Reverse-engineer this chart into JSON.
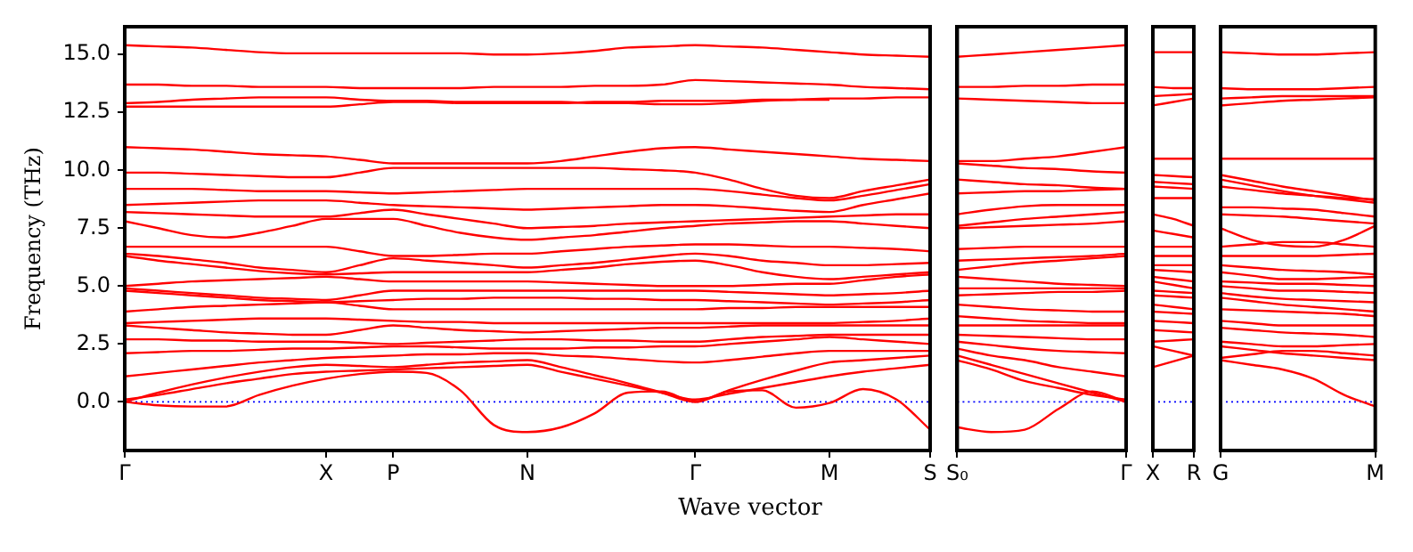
{
  "chart_data": [
    {
      "type": "line",
      "ylabel": "Frequency (THz)",
      "xlabel": "Wave vector",
      "marker": "none",
      "legend": false,
      "categories": [
        "Γ",
        null,
        null,
        null,
        null,
        null,
        "X",
        null,
        "P",
        null,
        null,
        null,
        "N",
        null,
        null,
        null,
        null,
        "Γ",
        null,
        null,
        null,
        "M",
        null,
        null,
        "S"
      ],
      "ylim": [
        -2.1,
        16.2
      ],
      "yticks": [
        {
          "value": 0,
          "label": "0.0"
        },
        2.5,
        {
          "value": 5,
          "label": "5.0"
        },
        7.5,
        {
          "value": 10,
          "label": "10.0"
        },
        12.5,
        {
          "value": 15,
          "label": "15.0"
        }
      ],
      "ref_lines": [
        {
          "axis": "y",
          "value": 0,
          "color": "#0000ff",
          "line_style": "dotted"
        }
      ],
      "series": [
        {
          "color": "#ff0000",
          "values": [
            15.4,
            15.35,
            15.3,
            15.2,
            15.1,
            15.05,
            15.05,
            15.05,
            15.05,
            15.05,
            15.05,
            15.0,
            15.0,
            15.05,
            15.15,
            15.3,
            15.35,
            15.4,
            15.35,
            15.3,
            15.2,
            15.1,
            15.0,
            14.95,
            14.9
          ]
        },
        {
          "color": "#ff0000",
          "values": [
            13.7,
            13.7,
            13.65,
            13.65,
            13.6,
            13.6,
            13.6,
            13.55,
            13.55,
            13.55,
            13.55,
            13.6,
            13.6,
            13.6,
            13.65,
            13.65,
            13.7,
            13.9,
            13.85,
            13.8,
            13.75,
            13.7,
            13.6,
            13.55,
            13.5
          ]
        },
        {
          "color": "#ff0000",
          "values": [
            12.9,
            12.95,
            13.05,
            13.1,
            13.15,
            13.15,
            13.15,
            13.05,
            13.0,
            13.0,
            12.95,
            12.95,
            12.95,
            12.95,
            12.9,
            12.9,
            12.85,
            12.85,
            12.9,
            13.0,
            13.05,
            13.1,
            13.1,
            13.15,
            13.15
          ]
        },
        {
          "color": "#ff0000",
          "values": [
            12.75,
            12.75,
            12.75,
            12.75,
            12.75,
            12.75,
            12.75,
            12.85,
            12.95,
            12.95,
            12.9,
            12.9,
            12.9,
            12.9,
            12.95,
            12.95,
            13.0,
            13.0,
            13.0,
            13.05,
            13.05,
            13.05,
            null,
            null,
            null
          ]
        },
        {
          "color": "#ff0000",
          "values": [
            11.0,
            10.95,
            10.9,
            10.8,
            10.7,
            10.65,
            10.6,
            10.45,
            10.3,
            10.3,
            10.3,
            10.3,
            10.3,
            10.4,
            10.6,
            10.8,
            10.95,
            11.0,
            10.9,
            10.8,
            10.7,
            10.6,
            10.5,
            10.45,
            10.4
          ]
        },
        {
          "color": "#ff0000",
          "values": [
            9.9,
            9.9,
            9.85,
            9.8,
            9.75,
            9.7,
            9.7,
            9.9,
            10.1,
            10.1,
            10.1,
            10.1,
            10.1,
            10.1,
            10.1,
            10.05,
            10.0,
            9.9,
            9.6,
            9.2,
            8.9,
            8.8,
            9.1,
            9.35,
            9.6
          ]
        },
        {
          "color": "#ff0000",
          "values": [
            9.2,
            9.2,
            9.2,
            9.15,
            9.1,
            9.1,
            9.1,
            9.05,
            9.0,
            9.05,
            9.1,
            9.15,
            9.2,
            9.2,
            9.2,
            9.2,
            9.2,
            9.2,
            9.1,
            8.95,
            8.8,
            8.7,
            8.9,
            9.15,
            9.4
          ]
        },
        {
          "color": "#ff0000",
          "values": [
            8.5,
            8.55,
            8.6,
            8.65,
            8.7,
            8.7,
            8.7,
            8.6,
            8.5,
            8.45,
            8.4,
            8.35,
            8.3,
            8.35,
            8.4,
            8.45,
            8.5,
            8.5,
            8.45,
            8.35,
            8.25,
            8.2,
            8.5,
            8.75,
            9.0
          ]
        },
        {
          "color": "#ff0000",
          "values": [
            8.2,
            8.15,
            8.1,
            8.05,
            8.0,
            8.0,
            8.0,
            8.15,
            8.3,
            8.1,
            7.9,
            7.7,
            7.5,
            7.55,
            7.6,
            7.7,
            7.75,
            7.8,
            7.85,
            7.9,
            7.95,
            8.0,
            8.05,
            8.1,
            8.1
          ]
        },
        {
          "color": "#ff0000",
          "values": [
            7.8,
            7.5,
            7.2,
            7.1,
            7.3,
            7.6,
            7.9,
            7.9,
            7.9,
            7.6,
            7.3,
            7.1,
            7.0,
            7.1,
            7.2,
            7.35,
            7.5,
            7.6,
            7.7,
            7.75,
            7.8,
            7.8,
            7.7,
            7.6,
            7.5
          ]
        },
        {
          "color": "#ff0000",
          "values": [
            6.7,
            6.7,
            6.7,
            6.7,
            6.7,
            6.7,
            6.7,
            6.5,
            6.3,
            6.3,
            6.35,
            6.4,
            6.4,
            6.5,
            6.6,
            6.7,
            6.75,
            6.8,
            6.8,
            6.75,
            6.7,
            6.7,
            6.65,
            6.6,
            6.5
          ]
        },
        {
          "color": "#ff0000",
          "values": [
            6.4,
            6.3,
            6.15,
            6.0,
            5.8,
            5.7,
            5.6,
            5.9,
            6.2,
            6.1,
            6.0,
            5.9,
            5.8,
            5.9,
            6.0,
            6.15,
            6.3,
            6.4,
            6.3,
            6.1,
            6.0,
            5.9,
            5.9,
            5.95,
            6.0
          ]
        },
        {
          "color": "#ff0000",
          "values": [
            6.3,
            6.1,
            5.95,
            5.8,
            5.65,
            5.55,
            5.5,
            5.55,
            5.6,
            5.6,
            5.6,
            5.6,
            5.6,
            5.7,
            5.8,
            5.95,
            6.05,
            6.1,
            5.9,
            5.6,
            5.4,
            5.3,
            5.4,
            5.5,
            5.6
          ]
        },
        {
          "color": "#ff0000",
          "values": [
            5.0,
            5.1,
            5.2,
            5.25,
            5.3,
            5.35,
            5.4,
            5.3,
            5.2,
            5.2,
            5.2,
            5.2,
            5.2,
            5.15,
            5.1,
            5.05,
            5.0,
            5.0,
            5.0,
            5.05,
            5.1,
            5.1,
            5.25,
            5.4,
            5.5
          ]
        },
        {
          "color": "#ff0000",
          "values": [
            4.9,
            4.8,
            4.7,
            4.6,
            4.5,
            4.45,
            4.4,
            4.6,
            4.8,
            4.8,
            4.8,
            4.8,
            4.8,
            4.8,
            4.8,
            4.8,
            4.8,
            4.8,
            4.75,
            4.7,
            4.65,
            4.6,
            4.65,
            4.7,
            4.8
          ]
        },
        {
          "color": "#ff0000",
          "values": [
            4.8,
            4.7,
            4.6,
            4.5,
            4.4,
            4.35,
            4.3,
            4.35,
            4.4,
            4.45,
            4.45,
            4.5,
            4.5,
            4.5,
            4.45,
            4.45,
            4.4,
            4.4,
            4.35,
            4.3,
            4.25,
            4.2,
            4.25,
            4.3,
            4.4
          ]
        },
        {
          "color": "#ff0000",
          "values": [
            3.9,
            4.0,
            4.1,
            4.15,
            4.2,
            4.25,
            4.3,
            4.15,
            4.0,
            4.0,
            4.0,
            4.0,
            4.0,
            4.0,
            4.0,
            4.0,
            4.0,
            4.0,
            4.05,
            4.05,
            4.1,
            4.1,
            4.1,
            4.1,
            4.1
          ]
        },
        {
          "color": "#ff0000",
          "values": [
            3.4,
            3.45,
            3.5,
            3.55,
            3.6,
            3.6,
            3.6,
            3.55,
            3.5,
            3.45,
            3.45,
            3.4,
            3.4,
            3.4,
            3.4,
            3.4,
            3.4,
            3.4,
            3.4,
            3.4,
            3.4,
            3.4,
            3.45,
            3.5,
            3.6
          ]
        },
        {
          "color": "#ff0000",
          "values": [
            3.3,
            3.2,
            3.1,
            3.0,
            2.95,
            2.9,
            2.9,
            3.1,
            3.3,
            3.2,
            3.1,
            3.05,
            3.0,
            3.05,
            3.1,
            3.15,
            3.2,
            3.2,
            3.25,
            3.3,
            3.3,
            3.3,
            3.3,
            3.3,
            3.3
          ]
        },
        {
          "color": "#ff0000",
          "values": [
            2.7,
            2.7,
            2.65,
            2.65,
            2.6,
            2.6,
            2.6,
            2.55,
            2.5,
            2.55,
            2.6,
            2.65,
            2.7,
            2.7,
            2.65,
            2.65,
            2.6,
            2.6,
            2.7,
            2.8,
            2.85,
            2.9,
            2.9,
            2.9,
            2.9
          ]
        },
        {
          "color": "#ff0000",
          "values": [
            2.1,
            2.15,
            2.2,
            2.2,
            2.25,
            2.3,
            2.3,
            2.35,
            2.4,
            2.4,
            2.35,
            2.3,
            2.3,
            2.3,
            2.35,
            2.35,
            2.4,
            2.4,
            2.5,
            2.6,
            2.7,
            2.8,
            2.7,
            2.6,
            2.5
          ]
        },
        {
          "color": "#ff0000",
          "values": [
            1.1,
            1.25,
            1.4,
            1.55,
            1.7,
            1.8,
            1.9,
            1.95,
            2.0,
            2.05,
            2.05,
            2.1,
            2.1,
            2.0,
            1.95,
            1.85,
            1.75,
            1.7,
            1.8,
            1.95,
            2.1,
            2.2,
            2.2,
            2.2,
            2.2
          ]
        },
        {
          "color": "#ff0000",
          "values": [
            0.0,
            0.4,
            0.75,
            1.05,
            1.3,
            1.5,
            1.6,
            1.55,
            1.5,
            1.6,
            1.7,
            1.75,
            1.8,
            1.5,
            1.15,
            0.8,
            0.4,
            0.0,
            0.5,
            0.95,
            1.35,
            1.7,
            1.8,
            1.9,
            2.0
          ]
        },
        {
          "color": "#ff0000",
          "values": [
            0.1,
            0.3,
            0.55,
            0.8,
            1.0,
            1.2,
            1.3,
            1.35,
            1.4,
            1.45,
            1.5,
            1.55,
            1.6,
            1.3,
            1.0,
            0.7,
            0.4,
            0.1,
            0.35,
            0.6,
            0.85,
            1.1,
            1.3,
            1.45,
            1.6
          ]
        },
        {
          "color": "#ff0000",
          "values": [
            0.0,
            -0.15,
            -0.2,
            -0.2,
            0.3,
            0.7,
            1.0,
            1.2,
            1.3,
            1.25,
            0.5,
            -1.0,
            -1.3,
            -1.1,
            -0.5,
            0.4,
            0.45,
            0.0,
            0.45,
            0.5,
            -0.25,
            -0.05,
            0.55,
            0.1,
            -1.2
          ]
        }
      ]
    },
    {
      "type": "line",
      "marker": "none",
      "legend": false,
      "tick_labels": "x",
      "categories": [
        "S₀",
        null,
        null,
        null,
        null,
        "Γ"
      ],
      "ylim": [
        -2.1,
        16.2
      ],
      "ref_lines": [
        {
          "axis": "y",
          "value": 0,
          "color": "#0000ff",
          "line_style": "dotted"
        }
      ],
      "series": [
        {
          "color": "#ff0000",
          "values": [
            14.9,
            15.0,
            15.1,
            15.2,
            15.3,
            15.4
          ]
        },
        {
          "color": "#ff0000",
          "values": [
            13.6,
            13.6,
            13.65,
            13.65,
            13.7,
            13.7
          ]
        },
        {
          "color": "#ff0000",
          "values": [
            13.1,
            13.05,
            13.0,
            12.95,
            12.9,
            12.9
          ]
        },
        {
          "color": "#ff0000",
          "values": [
            10.4,
            10.4,
            10.5,
            10.6,
            10.8,
            11.0
          ]
        },
        {
          "color": "#ff0000",
          "values": [
            10.3,
            10.2,
            10.1,
            10.05,
            9.95,
            9.9
          ]
        },
        {
          "color": "#ff0000",
          "values": [
            9.6,
            9.5,
            9.4,
            9.35,
            9.25,
            9.2
          ]
        },
        {
          "color": "#ff0000",
          "values": [
            9.0,
            9.05,
            9.1,
            9.1,
            9.15,
            9.2
          ]
        },
        {
          "color": "#ff0000",
          "values": [
            8.1,
            8.3,
            8.45,
            8.5,
            8.5,
            8.5
          ]
        },
        {
          "color": "#ff0000",
          "values": [
            7.6,
            7.75,
            7.9,
            8.0,
            8.1,
            8.2
          ]
        },
        {
          "color": "#ff0000",
          "values": [
            7.5,
            7.55,
            7.6,
            7.65,
            7.7,
            7.8
          ]
        },
        {
          "color": "#ff0000",
          "values": [
            6.6,
            6.65,
            6.7,
            6.7,
            6.7,
            6.7
          ]
        },
        {
          "color": "#ff0000",
          "values": [
            6.1,
            6.15,
            6.2,
            6.25,
            6.3,
            6.4
          ]
        },
        {
          "color": "#ff0000",
          "values": [
            5.7,
            5.85,
            6.0,
            6.1,
            6.2,
            6.3
          ]
        },
        {
          "color": "#ff0000",
          "values": [
            5.4,
            5.3,
            5.2,
            5.1,
            5.05,
            5.0
          ]
        },
        {
          "color": "#ff0000",
          "values": [
            4.9,
            4.9,
            4.9,
            4.9,
            4.9,
            4.9
          ]
        },
        {
          "color": "#ff0000",
          "values": [
            4.6,
            4.65,
            4.7,
            4.75,
            4.75,
            4.8
          ]
        },
        {
          "color": "#ff0000",
          "values": [
            4.2,
            4.1,
            4.0,
            3.95,
            3.9,
            3.9
          ]
        },
        {
          "color": "#ff0000",
          "values": [
            3.7,
            3.6,
            3.5,
            3.45,
            3.4,
            3.4
          ]
        },
        {
          "color": "#ff0000",
          "values": [
            3.3,
            3.3,
            3.3,
            3.3,
            3.3,
            3.3
          ]
        },
        {
          "color": "#ff0000",
          "values": [
            2.9,
            2.85,
            2.8,
            2.75,
            2.7,
            2.7
          ]
        },
        {
          "color": "#ff0000",
          "values": [
            2.6,
            2.45,
            2.3,
            2.2,
            2.15,
            2.1
          ]
        },
        {
          "color": "#ff0000",
          "values": [
            2.3,
            2.0,
            1.8,
            1.5,
            1.3,
            1.1
          ]
        },
        {
          "color": "#ff0000",
          "values": [
            2.0,
            1.6,
            1.2,
            0.8,
            0.4,
            0.0
          ]
        },
        {
          "color": "#ff0000",
          "values": [
            1.8,
            1.4,
            0.9,
            0.6,
            0.3,
            0.1
          ]
        },
        {
          "color": "#ff0000",
          "values": [
            -1.1,
            -1.3,
            -1.2,
            -0.3,
            0.45,
            0.0
          ]
        }
      ]
    },
    {
      "type": "line",
      "marker": "none",
      "legend": false,
      "tick_labels": "x",
      "categories": [
        "X",
        null,
        "R"
      ],
      "ylim": [
        -2.1,
        16.2
      ],
      "ref_lines": [
        {
          "axis": "y",
          "value": 0,
          "color": "#0000ff",
          "line_style": "dotted"
        }
      ],
      "series": [
        {
          "color": "#ff0000",
          "values": [
            15.1,
            15.1,
            15.1
          ]
        },
        {
          "color": "#ff0000",
          "values": [
            13.6,
            13.55,
            13.55
          ]
        },
        {
          "color": "#ff0000",
          "values": [
            13.2,
            13.25,
            13.3
          ]
        },
        {
          "color": "#ff0000",
          "values": [
            12.8,
            12.95,
            13.1
          ]
        },
        {
          "color": "#ff0000",
          "values": [
            10.5,
            10.5,
            10.5
          ]
        },
        {
          "color": "#ff0000",
          "values": [
            9.8,
            9.75,
            9.7
          ]
        },
        {
          "color": "#ff0000",
          "values": [
            9.5,
            9.45,
            9.4
          ]
        },
        {
          "color": "#ff0000",
          "values": [
            9.3,
            9.25,
            9.2
          ]
        },
        {
          "color": "#ff0000",
          "values": [
            8.8,
            8.8,
            8.8
          ]
        },
        {
          "color": "#ff0000",
          "values": [
            8.1,
            7.9,
            7.6
          ]
        },
        {
          "color": "#ff0000",
          "values": [
            7.4,
            7.25,
            7.1
          ]
        },
        {
          "color": "#ff0000",
          "values": [
            6.7,
            6.7,
            6.7
          ]
        },
        {
          "color": "#ff0000",
          "values": [
            6.3,
            6.3,
            6.3
          ]
        },
        {
          "color": "#ff0000",
          "values": [
            5.9,
            5.9,
            5.9
          ]
        },
        {
          "color": "#ff0000",
          "values": [
            5.7,
            5.65,
            5.6
          ]
        },
        {
          "color": "#ff0000",
          "values": [
            5.4,
            5.3,
            5.2
          ]
        },
        {
          "color": "#ff0000",
          "values": [
            5.2,
            5.05,
            4.9
          ]
        },
        {
          "color": "#ff0000",
          "values": [
            4.8,
            4.75,
            4.7
          ]
        },
        {
          "color": "#ff0000",
          "values": [
            4.6,
            4.55,
            4.5
          ]
        },
        {
          "color": "#ff0000",
          "values": [
            4.2,
            4.1,
            4.0
          ]
        },
        {
          "color": "#ff0000",
          "values": [
            3.9,
            3.85,
            3.8
          ]
        },
        {
          "color": "#ff0000",
          "values": [
            3.5,
            3.45,
            3.4
          ]
        },
        {
          "color": "#ff0000",
          "values": [
            3.1,
            3.05,
            3.0
          ]
        },
        {
          "color": "#ff0000",
          "values": [
            2.6,
            2.65,
            2.7
          ]
        },
        {
          "color": "#ff0000",
          "values": [
            2.4,
            2.2,
            2.0
          ]
        },
        {
          "color": "#ff0000",
          "values": [
            1.5,
            1.75,
            2.0
          ]
        }
      ]
    },
    {
      "type": "line",
      "marker": "none",
      "legend": false,
      "tick_labels": "x",
      "categories": [
        "G",
        null,
        null,
        null,
        null,
        "M"
      ],
      "ylim": [
        -2.1,
        16.2
      ],
      "ref_lines": [
        {
          "axis": "y",
          "value": 0,
          "color": "#0000ff",
          "line_style": "dotted"
        }
      ],
      "series": [
        {
          "color": "#ff0000",
          "values": [
            15.1,
            15.05,
            15.0,
            15.0,
            15.05,
            15.1
          ]
        },
        {
          "color": "#ff0000",
          "values": [
            13.55,
            13.5,
            13.5,
            13.5,
            13.55,
            13.6
          ]
        },
        {
          "color": "#ff0000",
          "values": [
            13.1,
            13.15,
            13.2,
            13.2,
            13.2,
            13.2
          ]
        },
        {
          "color": "#ff0000",
          "values": [
            12.8,
            12.9,
            13.0,
            13.05,
            13.1,
            13.15
          ]
        },
        {
          "color": "#ff0000",
          "values": [
            10.5,
            10.5,
            10.5,
            10.5,
            10.5,
            10.5
          ]
        },
        {
          "color": "#ff0000",
          "values": [
            9.8,
            9.55,
            9.3,
            9.1,
            8.9,
            8.7
          ]
        },
        {
          "color": "#ff0000",
          "values": [
            9.6,
            9.35,
            9.1,
            8.9,
            8.75,
            8.6
          ]
        },
        {
          "color": "#ff0000",
          "values": [
            9.3,
            9.15,
            9.0,
            8.9,
            8.8,
            8.75
          ]
        },
        {
          "color": "#ff0000",
          "values": [
            8.4,
            8.4,
            8.35,
            8.3,
            8.15,
            8.0
          ]
        },
        {
          "color": "#ff0000",
          "values": [
            8.1,
            8.05,
            8.0,
            7.9,
            7.8,
            7.7
          ]
        },
        {
          "color": "#ff0000",
          "values": [
            7.5,
            7.0,
            6.75,
            6.7,
            7.0,
            7.6
          ]
        },
        {
          "color": "#ff0000",
          "values": [
            6.7,
            6.8,
            6.9,
            6.9,
            6.8,
            6.7
          ]
        },
        {
          "color": "#ff0000",
          "values": [
            6.3,
            6.3,
            6.3,
            6.3,
            6.35,
            6.4
          ]
        },
        {
          "color": "#ff0000",
          "values": [
            5.9,
            5.8,
            5.7,
            5.65,
            5.6,
            5.5
          ]
        },
        {
          "color": "#ff0000",
          "values": [
            5.6,
            5.45,
            5.3,
            5.3,
            5.35,
            5.4
          ]
        },
        {
          "color": "#ff0000",
          "values": [
            5.2,
            5.15,
            5.1,
            5.1,
            5.05,
            5.0
          ]
        },
        {
          "color": "#ff0000",
          "values": [
            5.0,
            4.9,
            4.8,
            4.8,
            4.75,
            4.7
          ]
        },
        {
          "color": "#ff0000",
          "values": [
            4.7,
            4.55,
            4.45,
            4.4,
            4.35,
            4.3
          ]
        },
        {
          "color": "#ff0000",
          "values": [
            4.5,
            4.35,
            4.2,
            4.1,
            4.0,
            3.9
          ]
        },
        {
          "color": "#ff0000",
          "values": [
            4.0,
            3.95,
            3.9,
            3.85,
            3.8,
            3.7
          ]
        },
        {
          "color": "#ff0000",
          "values": [
            3.5,
            3.4,
            3.3,
            3.3,
            3.3,
            3.3
          ]
        },
        {
          "color": "#ff0000",
          "values": [
            3.2,
            3.1,
            3.0,
            2.95,
            2.9,
            2.8
          ]
        },
        {
          "color": "#ff0000",
          "values": [
            2.6,
            2.5,
            2.4,
            2.4,
            2.45,
            2.5
          ]
        },
        {
          "color": "#ff0000",
          "values": [
            2.4,
            2.25,
            2.1,
            2.0,
            1.9,
            1.8
          ]
        },
        {
          "color": "#ff0000",
          "values": [
            1.9,
            2.05,
            2.2,
            2.2,
            2.1,
            2.0
          ]
        },
        {
          "color": "#ff0000",
          "values": [
            1.8,
            1.6,
            1.4,
            1.0,
            0.3,
            -0.2
          ]
        }
      ]
    }
  ]
}
